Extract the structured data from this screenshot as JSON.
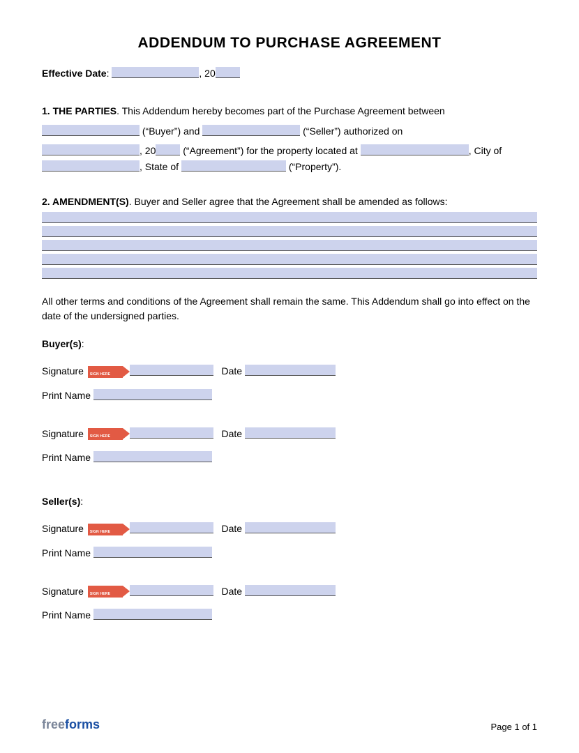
{
  "colors": {
    "field_bg": "#cdd3ed",
    "field_border": "#555555",
    "text": "#000000",
    "sign_tag_bg": "#e25a44",
    "sign_tag_text": "#ffffff",
    "logo_free": "#7a8599",
    "logo_forms": "#1a4fa3",
    "page_bg": "#ffffff"
  },
  "title": "ADDENDUM TO PURCHASE AGREEMENT",
  "effective_date": {
    "label": "Effective Date",
    "separator": ", 20",
    "day_field_width": 125,
    "year_field_width": 35
  },
  "section1": {
    "heading": "1. THE PARTIES",
    "text_a": ". This Addendum hereby becomes part of the Purchase Agreement between",
    "buyer_field_width": 140,
    "buyer_label": " (“Buyer”) and ",
    "seller_field_width": 140,
    "seller_label": " (“Seller”) authorized on",
    "date_field_width": 140,
    "date_sep": ", 20",
    "year_field_width": 35,
    "agreement_text": " (“Agreement”) for the property located at ",
    "address_field_width": 155,
    "city_prefix": ", City of ",
    "city_field_width": 140,
    "state_prefix": ", State of ",
    "state_field_width": 150,
    "property_label": " (“Property”)."
  },
  "section2": {
    "heading": "2. AMENDMENT(S)",
    "text": ". Buyer and Seller agree that the Agreement shall be amended as follows:",
    "amendment_lines": 5
  },
  "closing_paragraph": "All other terms and conditions of the Agreement shall remain the same. This Addendum shall go into effect on the date of the undersigned parties.",
  "buyers_heading": "Buyer(s)",
  "sellers_heading": "Seller(s)",
  "sig_labels": {
    "signature": "Signature",
    "date": "Date",
    "print_name": "Print Name"
  },
  "sign_tag_label": "SIGN HERE",
  "sig_field_widths": {
    "signature_after_tag": 120,
    "date_field": 130,
    "print_name_field": 170
  },
  "footer": {
    "logo_part1": "free",
    "logo_part2": "forms",
    "page_text": "Page 1 of 1"
  }
}
